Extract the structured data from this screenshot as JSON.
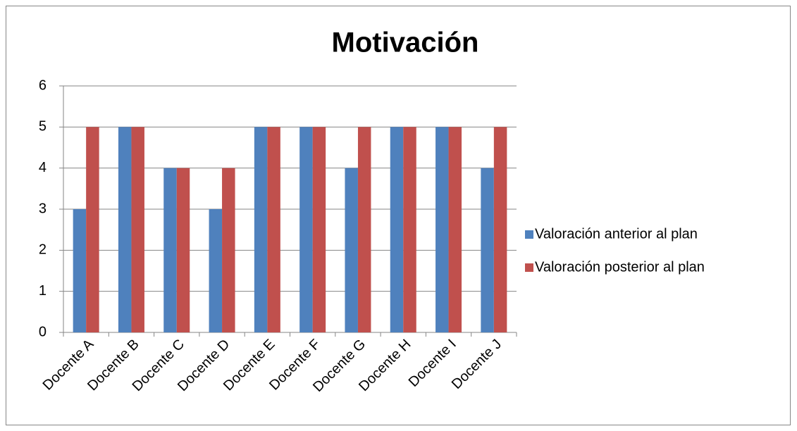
{
  "chart_data": {
    "type": "bar",
    "title": "Motivación",
    "categories": [
      "Docente A",
      "Docente B",
      "Docente C",
      "Docente D",
      "Docente E",
      "Docente F",
      "Docente G",
      "Docente H",
      "Docente I",
      "Docente J"
    ],
    "series": [
      {
        "name": "Valoración anterior al plan",
        "color": "#4f81bd",
        "values": [
          3,
          5,
          4,
          3,
          5,
          5,
          4,
          5,
          5,
          4
        ]
      },
      {
        "name": "Valoración posterior al plan",
        "color": "#c0504d",
        "values": [
          5,
          5,
          4,
          4,
          5,
          5,
          5,
          5,
          5,
          5
        ]
      }
    ],
    "ylim": [
      0,
      6
    ],
    "yticks": [
      0,
      1,
      2,
      3,
      4,
      5,
      6
    ],
    "grid": true,
    "legend": "right"
  }
}
